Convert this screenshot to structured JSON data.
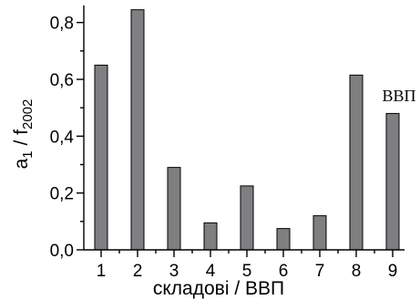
{
  "chart_data": {
    "type": "bar",
    "categories": [
      "1",
      "2",
      "3",
      "4",
      "5",
      "6",
      "7",
      "8",
      "9"
    ],
    "values": [
      0.65,
      0.845,
      0.29,
      0.095,
      0.225,
      0.075,
      0.12,
      0.615,
      0.48
    ],
    "xlabel": "складові / ВВП",
    "ylabel_main": "a",
    "ylabel_sub1": "1",
    "ylabel_mid": " / f",
    "ylabel_sub2": "2002",
    "ylim": [
      0,
      0.86
    ],
    "yticks": [
      0.0,
      0.2,
      0.4,
      0.6,
      0.8
    ],
    "ytick_labels": [
      "0,0",
      "0,2",
      "0,4",
      "0,6",
      "0,8"
    ],
    "bar_color": "#7f7f82",
    "annotation": "ВВП",
    "grid": false
  }
}
